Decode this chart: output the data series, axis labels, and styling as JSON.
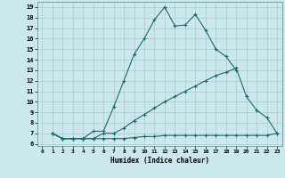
{
  "xlabel": "Humidex (Indice chaleur)",
  "xlim": [
    -0.5,
    23.5
  ],
  "ylim": [
    5.8,
    19.5
  ],
  "xticks": [
    0,
    1,
    2,
    3,
    4,
    5,
    6,
    7,
    8,
    9,
    10,
    11,
    12,
    13,
    14,
    15,
    16,
    17,
    18,
    19,
    20,
    21,
    22,
    23
  ],
  "yticks": [
    6,
    7,
    8,
    9,
    10,
    11,
    12,
    13,
    14,
    15,
    16,
    17,
    18,
    19
  ],
  "bg_color": "#cde8ec",
  "grid_color": "#b0d0d8",
  "line_color": "#1a6b6b",
  "line1_x": [
    1,
    2,
    3,
    4,
    5,
    6,
    7,
    8,
    9,
    10,
    11,
    12,
    13,
    14,
    15,
    16,
    17,
    18,
    19
  ],
  "line1_y": [
    7.0,
    6.5,
    6.5,
    6.5,
    7.2,
    7.2,
    9.5,
    12.0,
    14.5,
    16.0,
    17.8,
    19.0,
    17.2,
    17.3,
    18.3,
    16.8,
    15.0,
    14.3,
    13.0
  ],
  "line2_x": [
    1,
    2,
    3,
    4,
    5,
    6,
    7,
    8,
    9,
    10,
    11,
    12,
    13,
    14,
    15,
    16,
    17,
    18,
    19,
    20,
    21,
    22,
    23
  ],
  "line2_y": [
    7.0,
    6.5,
    6.5,
    6.5,
    6.5,
    7.0,
    7.0,
    7.5,
    8.2,
    8.8,
    9.4,
    10.0,
    10.5,
    11.0,
    11.5,
    12.0,
    12.5,
    12.8,
    13.2,
    10.5,
    9.2,
    8.5,
    7.0
  ],
  "line3_x": [
    1,
    2,
    3,
    4,
    5,
    6,
    7,
    8,
    9,
    10,
    11,
    12,
    13,
    14,
    15,
    16,
    17,
    18,
    19,
    20,
    21,
    22,
    23
  ],
  "line3_y": [
    7.0,
    6.5,
    6.5,
    6.5,
    6.5,
    6.5,
    6.5,
    6.5,
    6.6,
    6.7,
    6.7,
    6.8,
    6.8,
    6.8,
    6.8,
    6.8,
    6.8,
    6.8,
    6.8,
    6.8,
    6.8,
    6.8,
    7.0
  ]
}
